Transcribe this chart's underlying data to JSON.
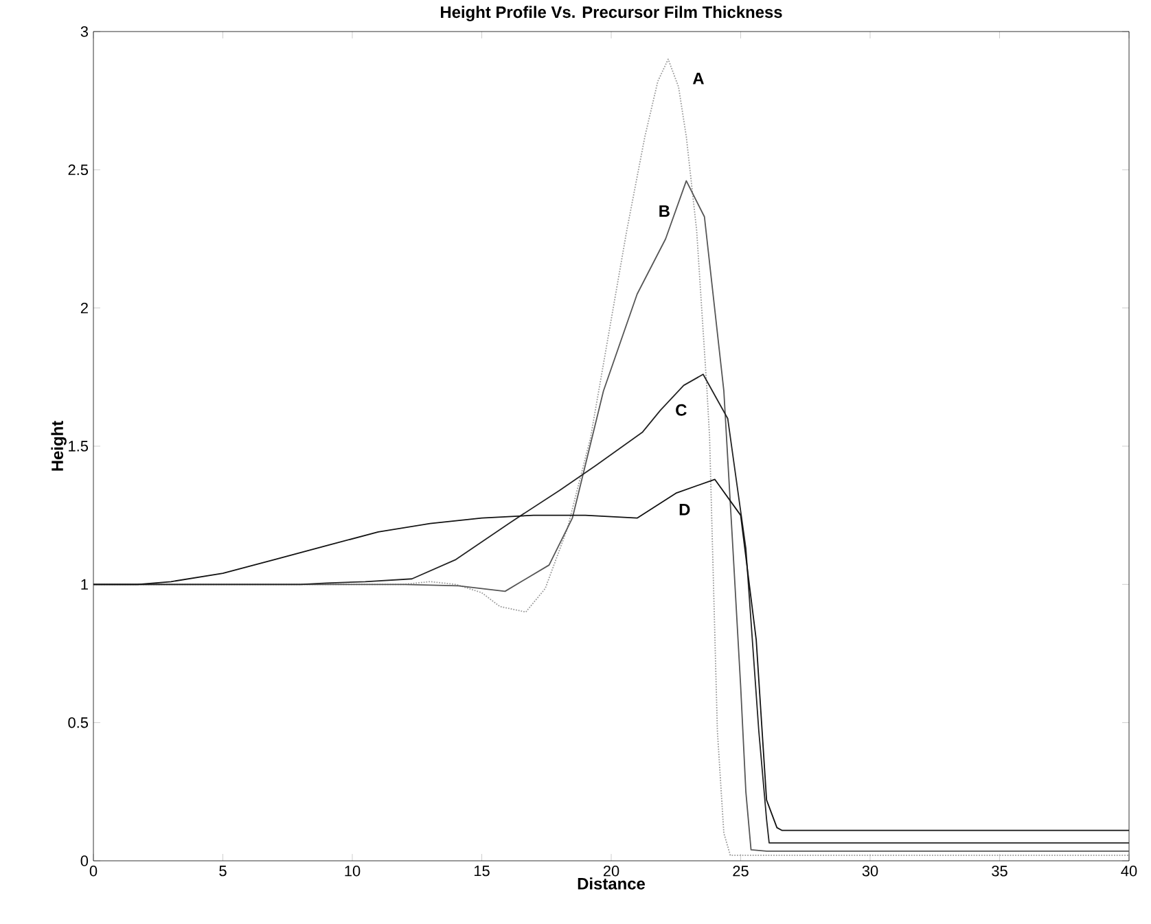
{
  "chart_data": {
    "type": "line",
    "title": "Height Profile Vs. Precursor Film Thickness",
    "xlabel": "Distance",
    "ylabel": "Height",
    "xlim": [
      0,
      40
    ],
    "ylim": [
      0,
      3
    ],
    "xticks": [
      0,
      5,
      10,
      15,
      20,
      25,
      30,
      35,
      40
    ],
    "yticks": [
      0,
      0.5,
      1,
      1.5,
      2,
      2.5,
      3
    ],
    "grid": false,
    "series": [
      {
        "name": "A",
        "color": "#9a9a9a",
        "line_style": "dotted",
        "x": [
          0,
          10,
          12,
          13,
          14,
          15,
          15.7,
          16.7,
          17.45,
          18.3,
          19.2,
          20.6,
          21.3,
          21.8,
          22.2,
          22.6,
          22.9,
          23.3,
          23.7,
          23.8,
          24.1,
          24.35,
          24.6,
          25,
          30,
          35,
          40
        ],
        "values": [
          1,
          1,
          1,
          1.01,
          1,
          0.97,
          0.92,
          0.9,
          0.985,
          1.2,
          1.53,
          2.28,
          2.62,
          2.82,
          2.9,
          2.8,
          2.62,
          2.28,
          1.7,
          1.53,
          0.47,
          0.1,
          0.02,
          0.02,
          0.02,
          0.02,
          0.02
        ]
      },
      {
        "name": "B",
        "color": "#555555",
        "x": [
          0,
          10,
          12,
          14.1,
          15.9,
          17.6,
          18.5,
          19.7,
          21,
          22.1,
          22.9,
          23.6,
          24.35,
          24.7,
          25,
          25.2,
          25.4,
          26,
          30,
          35,
          40
        ],
        "values": [
          1,
          1,
          1,
          0.995,
          0.975,
          1.07,
          1.24,
          1.7,
          2.05,
          2.25,
          2.46,
          2.33,
          1.7,
          1.13,
          0.63,
          0.25,
          0.04,
          0.035,
          0.035,
          0.035,
          0.035
        ]
      },
      {
        "name": "C",
        "color": "#222222",
        "x": [
          0,
          8,
          9,
          10.5,
          12.3,
          14,
          16.2,
          18,
          19.4,
          21.2,
          21.9,
          22.8,
          23.55,
          24.5,
          25.2,
          25.7,
          26,
          26.1,
          26.5,
          30,
          35,
          40
        ],
        "values": [
          1,
          1,
          1.005,
          1.01,
          1.02,
          1.09,
          1.23,
          1.34,
          1.43,
          1.55,
          1.63,
          1.72,
          1.76,
          1.6,
          1.13,
          0.47,
          0.15,
          0.065,
          0.065,
          0.065,
          0.065,
          0.065
        ]
      },
      {
        "name": "D",
        "color": "#111111",
        "x": [
          0,
          1.7,
          3,
          5,
          7,
          9,
          11,
          13,
          15,
          17,
          19,
          21,
          22.5,
          24,
          25,
          25.6,
          26,
          26.4,
          26.6,
          27,
          30,
          35,
          40
        ],
        "values": [
          1,
          1,
          1.01,
          1.04,
          1.09,
          1.14,
          1.19,
          1.22,
          1.24,
          1.25,
          1.25,
          1.24,
          1.33,
          1.38,
          1.25,
          0.8,
          0.22,
          0.12,
          0.11,
          0.11,
          0.11,
          0.11,
          0.11
        ]
      }
    ]
  }
}
